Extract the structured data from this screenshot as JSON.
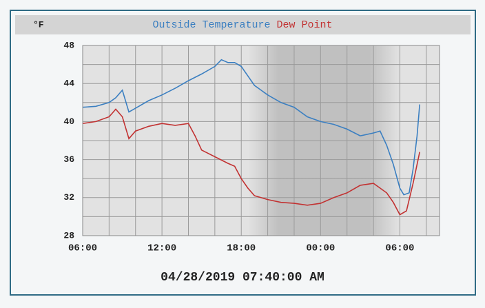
{
  "chart_data": {
    "type": "line",
    "unit": "°F",
    "timestamp": "04/28/2019 07:40:00 AM",
    "xlim": [
      0,
      27
    ],
    "xticks": [
      {
        "value": 0,
        "label": "06:00"
      },
      {
        "value": 6,
        "label": "12:00"
      },
      {
        "value": 12,
        "label": "18:00"
      },
      {
        "value": 18,
        "label": "00:00"
      },
      {
        "value": 24,
        "label": "06:00"
      }
    ],
    "xminorticks": [
      2,
      4,
      8,
      10,
      14,
      16,
      20,
      22,
      26
    ],
    "ylim": [
      28,
      48
    ],
    "yticks": [
      28,
      32,
      36,
      40,
      44,
      48
    ],
    "yminorticks": [
      30,
      34,
      38,
      42,
      46
    ],
    "grid": true,
    "series": [
      {
        "name": "Outside Temperature",
        "color": "#3b7fc1",
        "x": [
          0,
          1,
          2,
          2.5,
          3,
          3.5,
          4,
          5,
          6,
          7,
          8,
          9,
          10,
          10.5,
          11,
          11.5,
          12,
          12.5,
          13,
          14,
          15,
          16,
          17,
          18,
          19,
          20,
          21,
          22,
          22.5,
          23,
          23.5,
          24,
          24.3,
          24.7,
          25,
          25.3,
          25.5
        ],
        "values": [
          41.5,
          41.6,
          42.0,
          42.5,
          43.3,
          41.0,
          41.4,
          42.2,
          42.8,
          43.5,
          44.3,
          45.0,
          45.8,
          46.5,
          46.2,
          46.2,
          45.8,
          44.8,
          43.8,
          42.8,
          42.0,
          41.5,
          40.5,
          40.0,
          39.7,
          39.2,
          38.5,
          38.8,
          39.0,
          37.5,
          35.5,
          33.0,
          32.3,
          32.5,
          35.0,
          38.5,
          41.8
        ]
      },
      {
        "name": "Dew Point",
        "color": "#c23232",
        "x": [
          0,
          1,
          2,
          2.5,
          3,
          3.5,
          4,
          5,
          6,
          7,
          8,
          8.5,
          9,
          10,
          11,
          11.5,
          12,
          12.5,
          13,
          14,
          15,
          16,
          17,
          18,
          19,
          20,
          21,
          22,
          23,
          23.5,
          24,
          24.5,
          25,
          25.5
        ],
        "values": [
          39.8,
          40.0,
          40.5,
          41.3,
          40.5,
          38.2,
          39.0,
          39.5,
          39.8,
          39.6,
          39.8,
          38.5,
          37.0,
          36.3,
          35.6,
          35.3,
          34.0,
          33.0,
          32.2,
          31.8,
          31.5,
          31.4,
          31.2,
          31.4,
          32.0,
          32.5,
          33.3,
          33.5,
          32.5,
          31.5,
          30.2,
          30.6,
          33.5,
          36.8
        ]
      }
    ]
  }
}
